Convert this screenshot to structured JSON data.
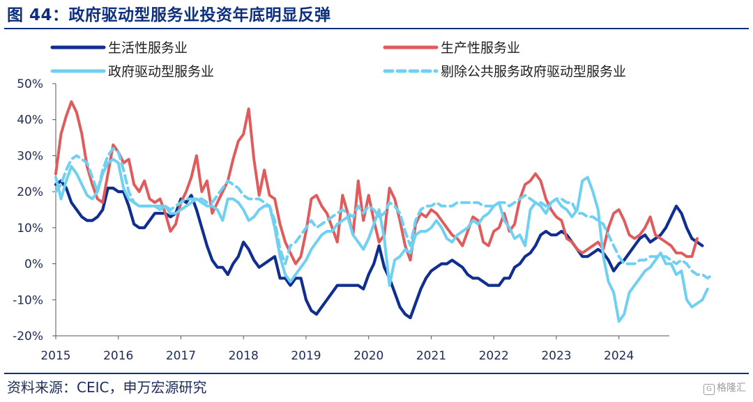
{
  "title": "图 44：政府驱动型服务业投资年底明显反弹",
  "source": "资料来源：CEIC，申万宏源研究",
  "watermark": "格隆汇",
  "chart_data": {
    "type": "line",
    "x_start": 2015.0,
    "x_step_months": 1,
    "xlim": [
      2015.0,
      2024.75
    ],
    "ylim": [
      -20,
      50
    ],
    "ytick_labels": [
      "-20%",
      "-10%",
      "0%",
      "10%",
      "20%",
      "30%",
      "40%",
      "50%"
    ],
    "xtick_labels": [
      "2015",
      "2016",
      "2017",
      "2018",
      "2019",
      "2020",
      "2021",
      "2022",
      "2023",
      "2024"
    ],
    "grid": false,
    "legend_position": "top",
    "series": [
      {
        "name": "生活性服务业",
        "color": "#0f2e8f",
        "dash": false,
        "values": [
          22,
          23,
          21,
          17,
          15,
          13,
          12,
          12,
          13,
          15,
          21,
          21,
          20,
          20,
          16,
          11,
          10,
          10,
          12,
          14,
          14,
          14,
          13,
          14,
          18,
          17,
          19,
          15,
          10,
          5,
          1,
          -1,
          -1,
          -3,
          0,
          2,
          6,
          4,
          1,
          -1,
          0,
          1,
          2,
          -4,
          -4,
          -6,
          -4,
          -4,
          -10,
          -13,
          -14,
          -12,
          -10,
          -8,
          -6,
          -6,
          -6,
          -6,
          -6,
          -7,
          -3,
          0,
          5,
          -1,
          -4,
          -8,
          -12,
          -14,
          -15,
          -11,
          -7,
          -4,
          -2,
          -1,
          0,
          0,
          1,
          0,
          -1,
          -3,
          -4,
          -4,
          -5,
          -6,
          -6,
          -6,
          -4,
          -4,
          -1,
          0,
          2,
          3,
          5,
          8,
          9,
          8,
          8,
          9,
          8,
          6,
          4,
          2,
          2,
          3,
          4,
          3,
          1,
          -2,
          0,
          1,
          3,
          5,
          7,
          8,
          6,
          7,
          8,
          10,
          13,
          16,
          14,
          10,
          7,
          6,
          5
        ]
      },
      {
        "name": "生产性服务业",
        "color": "#e05c5c",
        "dash": false,
        "values": [
          25,
          36,
          41,
          45,
          42,
          36,
          27,
          22,
          18,
          17,
          25,
          33,
          31,
          28,
          29,
          22,
          20,
          23,
          18,
          17,
          18,
          14,
          9,
          11,
          17,
          20,
          24,
          30,
          20,
          23,
          14,
          17,
          20,
          23,
          29,
          34,
          36,
          43,
          29,
          19,
          26,
          19,
          18,
          11,
          6,
          3,
          0,
          2,
          9,
          18,
          19,
          16,
          14,
          10,
          6,
          19,
          14,
          8,
          23,
          12,
          19,
          12,
          6,
          8,
          21,
          18,
          12,
          5,
          1,
          11,
          14,
          13,
          15,
          14,
          12,
          10,
          8,
          7,
          5,
          9,
          13,
          12,
          6,
          5,
          9,
          10,
          14,
          9,
          11,
          18,
          22,
          23,
          25,
          23,
          18,
          15,
          13,
          12,
          7,
          6,
          4,
          3,
          4,
          5,
          6,
          4,
          10,
          14,
          15,
          12,
          8,
          7,
          8,
          10,
          13,
          8,
          7,
          6,
          5,
          3,
          3,
          2,
          2,
          7
        ]
      },
      {
        "name": "政府驱动型服务业",
        "color": "#6fd0f2",
        "dash": false,
        "values": [
          24,
          18,
          23,
          27,
          25,
          22,
          19,
          18,
          20,
          25,
          28,
          29,
          28,
          21,
          18,
          17,
          16,
          16,
          16,
          16,
          15,
          16,
          14,
          14,
          15,
          16,
          17,
          18,
          17,
          16,
          16,
          15,
          12,
          18,
          18,
          17,
          15,
          12,
          13,
          15,
          16,
          16,
          10,
          2,
          -3,
          -5,
          -3,
          -1,
          1,
          4,
          6,
          8,
          9,
          9,
          11,
          12,
          13,
          8,
          6,
          4,
          7,
          11,
          15,
          7,
          -6,
          1,
          2,
          4,
          3,
          8,
          9,
          9,
          10,
          12,
          10,
          7,
          6,
          8,
          9,
          10,
          12,
          11,
          13,
          14,
          16,
          17,
          12,
          10,
          7,
          8,
          5,
          15,
          17,
          16,
          14,
          17,
          18,
          16,
          15,
          13,
          15,
          23,
          24,
          20,
          15,
          2,
          -5,
          -8,
          -16,
          -14,
          -8,
          -6,
          -4,
          -2,
          -1,
          1,
          3,
          0,
          0,
          -3,
          -2,
          -10,
          -12,
          -11,
          -10,
          -7
        ]
      },
      {
        "name": "剔除公共服务政府驱动型服务业",
        "color": "#6fd0f2",
        "dash": true,
        "values": [
          20,
          22,
          26,
          29,
          30,
          29,
          28,
          24,
          20,
          26,
          30,
          32,
          31,
          26,
          20,
          17,
          16,
          16,
          16,
          16,
          16,
          16,
          15,
          16,
          17,
          18,
          18,
          18,
          18,
          17,
          17,
          19,
          21,
          23,
          22,
          21,
          19,
          18,
          18,
          18,
          17,
          16,
          12,
          4,
          0,
          5,
          6,
          8,
          10,
          12,
          10,
          11,
          12,
          13,
          14,
          15,
          14,
          13,
          16,
          14,
          16,
          15,
          13,
          14,
          17,
          16,
          14,
          9,
          5,
          12,
          15,
          16,
          16,
          17,
          16,
          16,
          16,
          17,
          17,
          17,
          17,
          17,
          16,
          16,
          16,
          17,
          17,
          16,
          17,
          18,
          19,
          18,
          17,
          17,
          16,
          17,
          18,
          18,
          17,
          17,
          14,
          14,
          13,
          13,
          12,
          11,
          8,
          5,
          2,
          0,
          0,
          0,
          1,
          1,
          2,
          2,
          2,
          2,
          1,
          0,
          1,
          0,
          -2,
          -3,
          -3,
          -4,
          -3
        ]
      }
    ]
  }
}
